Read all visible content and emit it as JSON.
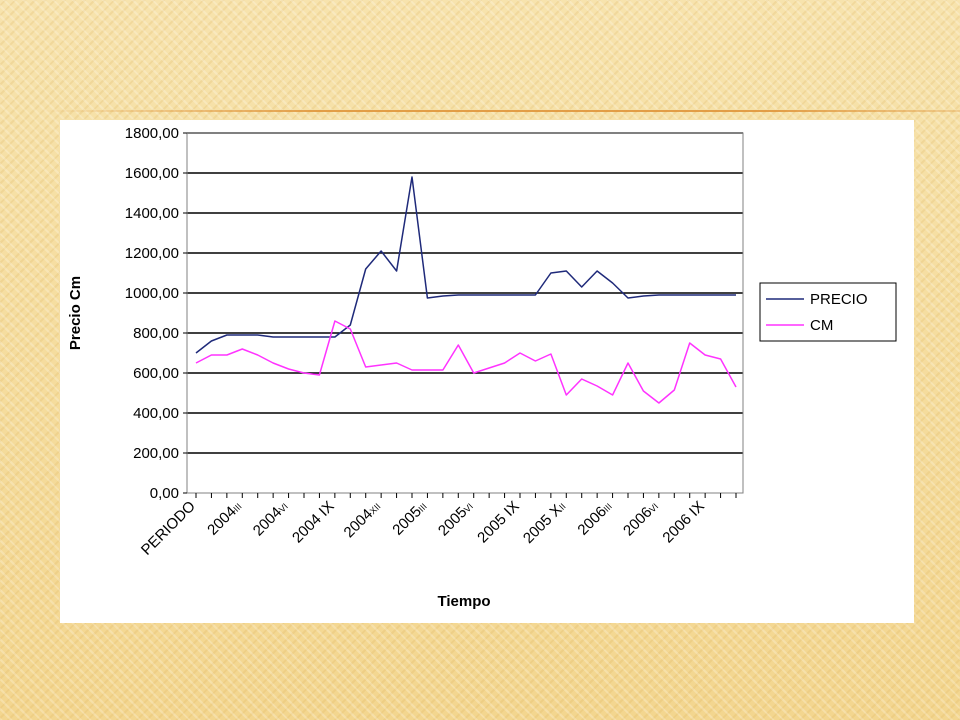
{
  "chart_data": {
    "type": "line",
    "title": "",
    "xlabel": "Tiempo",
    "ylabel": "Precio Cm",
    "ylim": [
      0,
      1800
    ],
    "y_ticks": [
      "0,00",
      "200,00",
      "400,00",
      "600,00",
      "800,00",
      "1000,00",
      "1200,00",
      "1400,00",
      "1600,00",
      "1800,00"
    ],
    "y_tick_values": [
      0,
      200,
      400,
      600,
      800,
      1000,
      1200,
      1400,
      1600,
      1800
    ],
    "x_count": 36,
    "x_tick_labels": [
      {
        "index": 0,
        "main": "PERIODO",
        "sub": ""
      },
      {
        "index": 3,
        "main": "2004",
        "sub": "III"
      },
      {
        "index": 6,
        "main": "2004",
        "sub": "VI"
      },
      {
        "index": 9,
        "main": "2004 IX",
        "sub": ""
      },
      {
        "index": 12,
        "main": "2004",
        "sub": "XII"
      },
      {
        "index": 15,
        "main": "2005",
        "sub": "III"
      },
      {
        "index": 18,
        "main": "2005",
        "sub": "VI"
      },
      {
        "index": 21,
        "main": "2005 IX",
        "sub": ""
      },
      {
        "index": 24,
        "main": "2005 X",
        "sub": "II"
      },
      {
        "index": 27,
        "main": "2006",
        "sub": "III"
      },
      {
        "index": 30,
        "main": "2006",
        "sub": "VI"
      },
      {
        "index": 33,
        "main": "2006 IX",
        "sub": ""
      }
    ],
    "series": [
      {
        "name": "PRECIO",
        "color": "#1f2a7a",
        "values": [
          700,
          760,
          790,
          790,
          790,
          780,
          780,
          780,
          780,
          780,
          840,
          1120,
          1210,
          1110,
          1580,
          975,
          985,
          990,
          990,
          990,
          990,
          990,
          990,
          1100,
          1110,
          1030,
          1110,
          1050,
          975,
          985,
          990,
          990,
          990,
          990,
          990,
          990
        ]
      },
      {
        "name": "CM",
        "color": "#ff33ff",
        "values": [
          650,
          690,
          690,
          720,
          690,
          650,
          620,
          600,
          590,
          860,
          820,
          630,
          640,
          650,
          615,
          615,
          615,
          740,
          600,
          625,
          650,
          700,
          660,
          695,
          490,
          570,
          535,
          490,
          650,
          510,
          450,
          515,
          750,
          690,
          670,
          530
        ]
      }
    ],
    "grid": true,
    "legend_position": "right"
  }
}
